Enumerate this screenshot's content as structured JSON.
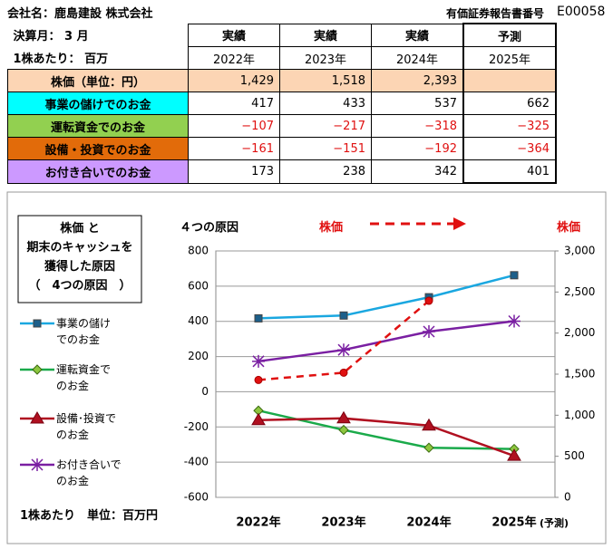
{
  "header": {
    "company": "会社名：鹿島建設 株式会社",
    "report_label": "有価証券報告書番号",
    "report_id": "E00058",
    "fiscal_month": "決算月：  3  月",
    "per_share": "1株あたり：  百万"
  },
  "table": {
    "columns": [
      {
        "kind": "実績",
        "year": "2022年"
      },
      {
        "kind": "実績",
        "year": "2023年"
      },
      {
        "kind": "実績",
        "year": "2024年"
      },
      {
        "kind": "予測",
        "year": "2025年"
      }
    ],
    "rows": [
      {
        "label": "株価（単位：円）",
        "color": "#fcd5b4",
        "row_fill": true,
        "negative": false,
        "cells": [
          "1,429",
          "1,518",
          "2,393"
        ]
      },
      {
        "label": "事業の儲けでのお金",
        "color": "#00ffff",
        "row_fill": false,
        "negative": false,
        "cells": [
          "417",
          "433",
          "537",
          "662"
        ]
      },
      {
        "label": "運転資金でのお金",
        "color": "#92d050",
        "row_fill": false,
        "negative": true,
        "cells": [
          "−107",
          "−217",
          "−318",
          "−325"
        ]
      },
      {
        "label": "設備・投資でのお金",
        "color": "#e26b0a",
        "row_fill": false,
        "negative": true,
        "cells": [
          "−161",
          "−151",
          "−192",
          "−364"
        ]
      },
      {
        "label": "お付き合いでのお金",
        "color": "#cc99ff",
        "row_fill": false,
        "negative": false,
        "cells": [
          "173",
          "238",
          "342",
          "401"
        ]
      }
    ]
  },
  "chart_data": {
    "type": "line",
    "title": "株価 と\n期末のキャッシュを\n獲得した原因\n（　4つの原因　）",
    "subtitle": "４つの原因",
    "note": "1株あたり　単位：百万円",
    "forecast_note": "(予測)",
    "y2_label": "株価",
    "categories": [
      "2022年",
      "2023年",
      "2024年",
      "2025年"
    ],
    "series": [
      {
        "name": "事業の儲け\nでのお金",
        "color": "#1aa7e0",
        "marker": "square",
        "values": [
          417,
          433,
          537,
          662
        ]
      },
      {
        "name": "運転資金で\nのお金",
        "color": "#1aaa4a",
        "marker": "diamond",
        "values": [
          -107,
          -217,
          -318,
          -325
        ]
      },
      {
        "name": "設備･投資で\nのお金",
        "color": "#b01020",
        "marker": "triangle",
        "values": [
          -161,
          -151,
          -192,
          -364
        ]
      },
      {
        "name": "お付き合いで\nのお金",
        "color": "#7a1fa2",
        "marker": "star",
        "values": [
          173,
          238,
          342,
          401
        ]
      },
      {
        "name": "株価",
        "color": "#e01010",
        "marker": "circle",
        "dash": true,
        "axis": "y2",
        "values": [
          1429,
          1518,
          2393,
          null
        ]
      }
    ],
    "ylim": [
      -600,
      800
    ],
    "yticks": [
      -600,
      -400,
      -200,
      0,
      200,
      400,
      600,
      800
    ],
    "y2lim": [
      0,
      3000
    ],
    "y2ticks": [
      0,
      500,
      {
        "value": 1000,
        "label": "1,000"
      },
      {
        "value": 1500,
        "label": "1,500"
      },
      {
        "value": 2000,
        "label": "2,000"
      },
      {
        "value": 2500,
        "label": "2,500"
      },
      {
        "value": 3000,
        "label": "3,000"
      }
    ],
    "grid": true
  }
}
